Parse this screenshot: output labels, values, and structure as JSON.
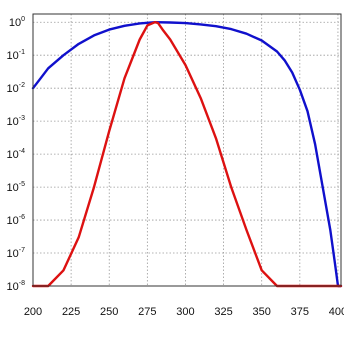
{
  "chart_data": {
    "type": "line",
    "title": "",
    "xlabel": "",
    "ylabel": "",
    "xlim": [
      200,
      402
    ],
    "ylim_log10": [
      -8,
      0.25
    ],
    "y_scale": "log",
    "grid": true,
    "x_ticks": [
      "200",
      "225",
      "250",
      "275",
      "300",
      "325",
      "350",
      "375",
      "400"
    ],
    "y_ticks": [
      {
        "base": "10",
        "exp": "0"
      },
      {
        "base": "10",
        "exp": "-1"
      },
      {
        "base": "10",
        "exp": "-2"
      },
      {
        "base": "10",
        "exp": "-3"
      },
      {
        "base": "10",
        "exp": "-4"
      },
      {
        "base": "10",
        "exp": "-5"
      },
      {
        "base": "10",
        "exp": "-6"
      },
      {
        "base": "10",
        "exp": "-7"
      },
      {
        "base": "10",
        "exp": "-8"
      }
    ],
    "series": [
      {
        "color": "#1010cc",
        "x": [
          200,
          205,
          210,
          220,
          230,
          240,
          250,
          260,
          270,
          280,
          290,
          300,
          310,
          320,
          330,
          340,
          350,
          360,
          365,
          370,
          375,
          380,
          385,
          390,
          395,
          398,
          400,
          402
        ],
        "y": [
          0.01,
          0.02,
          0.04,
          0.1,
          0.22,
          0.4,
          0.6,
          0.78,
          0.92,
          1.0,
          0.98,
          0.94,
          0.86,
          0.76,
          0.62,
          0.45,
          0.28,
          0.13,
          0.07,
          0.03,
          0.009,
          0.002,
          0.0002,
          1e-05,
          5e-07,
          5e-08,
          1e-08,
          1e-08
        ]
      },
      {
        "color": "#dd1111",
        "x": [
          200,
          210,
          220,
          230,
          240,
          250,
          260,
          270,
          275,
          280,
          282,
          285,
          290,
          300,
          310,
          320,
          330,
          340,
          350,
          360,
          370,
          375,
          380,
          390,
          400,
          402
        ],
        "y": [
          1e-08,
          1e-08,
          3e-08,
          3e-07,
          1e-05,
          0.0005,
          0.02,
          0.3,
          0.8,
          1.0,
          0.95,
          0.6,
          0.3,
          0.05,
          0.005,
          0.0003,
          1e-05,
          5e-07,
          3e-08,
          1e-08,
          1e-08,
          1e-08,
          1e-08,
          1e-08,
          1e-08,
          1e-08
        ]
      }
    ]
  }
}
